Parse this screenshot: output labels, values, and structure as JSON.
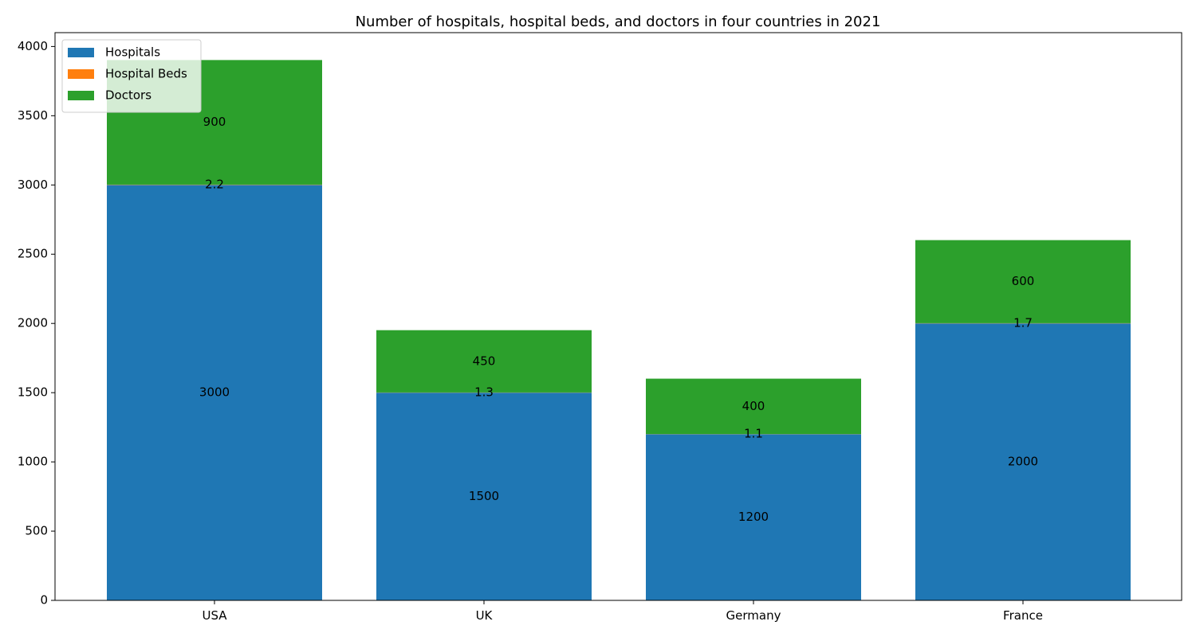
{
  "chart_data": {
    "type": "bar",
    "stacked": true,
    "title": "Number of hospitals, hospital beds, and doctors in four countries in 2021",
    "xlabel": "",
    "ylabel": "",
    "categories": [
      "USA",
      "UK",
      "Germany",
      "France"
    ],
    "series": [
      {
        "name": "Hospitals",
        "values": [
          3000,
          1500,
          1200,
          2000
        ],
        "color": "#1f77b4"
      },
      {
        "name": "Hospital Beds",
        "values": [
          2.2,
          1.3,
          1.1,
          1.7
        ],
        "color": "#ff7f0e"
      },
      {
        "name": "Doctors",
        "values": [
          900,
          450,
          400,
          600
        ],
        "color": "#2ca02c"
      }
    ],
    "ylim": [
      0,
      4100
    ],
    "yticks": [
      0,
      500,
      1000,
      1500,
      2000,
      2500,
      3000,
      3500,
      4000
    ],
    "grid": false,
    "legend_position": "top-left"
  }
}
